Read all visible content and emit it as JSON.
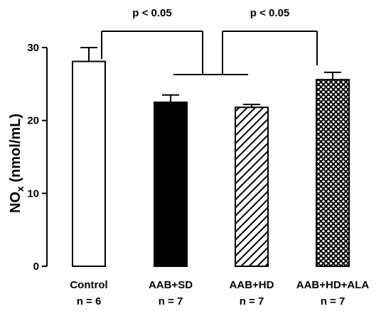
{
  "chart_data": {
    "type": "bar",
    "categories": [
      "Control",
      "AAB+SD",
      "AAB+HD",
      "AAB+HD+ALA"
    ],
    "sample_sizes": [
      "n = 6",
      "n = 7",
      "n = 7",
      "n = 7"
    ],
    "values": [
      28.1,
      22.5,
      21.8,
      25.6
    ],
    "errors": [
      1.9,
      1.0,
      0.4,
      1.0
    ],
    "fills": [
      "white",
      "black",
      "diagonal-hatch",
      "crosshatch"
    ],
    "ylabel_main": "NO",
    "ylabel_sub": "x",
    "ylabel_rest": " (nmol/mL)",
    "xlabel": "",
    "ylim": [
      0,
      30
    ],
    "yticks": [
      0,
      10,
      20,
      30
    ],
    "grid": false,
    "significance": [
      {
        "label": "p < 0.05",
        "left_group": [
          0
        ],
        "right_group": [
          1,
          2
        ]
      },
      {
        "label": "p < 0.05",
        "left_group": [
          1,
          2
        ],
        "right_group": [
          3
        ]
      }
    ]
  }
}
